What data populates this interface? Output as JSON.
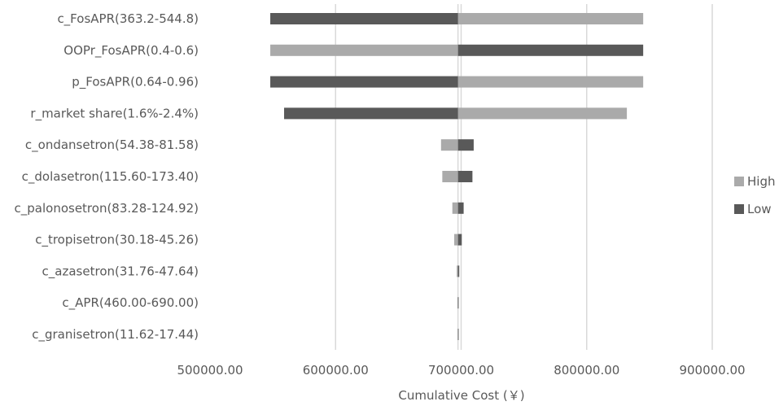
{
  "chart_data": {
    "type": "bar",
    "orientation": "horizontal",
    "variant": "tornado",
    "base_value": 697500,
    "categories": [
      "c_FosAPR(363.2-544.8)",
      "OOPr_FosAPR(0.4-0.6)",
      "p_FosAPR(0.64-0.96)",
      "r_market share(1.6%-2.4%)",
      "c_ondansetron(54.38-81.58)",
      "c_dolasetron(115.60-173.40)",
      "c_palonosetron(83.28-124.92)",
      "c_tropisetron(30.18-45.26)",
      "c_azasetron(31.76-47.64)",
      "c_APR(460.00-690.00)",
      "c_granisetron(11.62-17.44)"
    ],
    "series": [
      {
        "name": "High",
        "color": "#aaaaaa",
        "values": [
          845000,
          548000,
          845000,
          832000,
          684000,
          685000,
          693000,
          694500,
          696500,
          697000,
          697300
        ]
      },
      {
        "name": "Low",
        "color": "#595959",
        "values": [
          548000,
          845000,
          548000,
          559000,
          710000,
          709000,
          702000,
          700500,
          698500,
          698000,
          697700
        ]
      }
    ],
    "xlim": [
      500000,
      920000
    ],
    "x_ticks": [
      "500000.00",
      "600000.00",
      "700000.00",
      "800000.00",
      "900000.00"
    ],
    "x_tick_values": [
      500000,
      600000,
      700000,
      800000,
      900000
    ],
    "xlabel": "Cumulative Cost (￥)",
    "ylabel": "",
    "title": "",
    "grid": "vertical",
    "legend_position": "right"
  }
}
